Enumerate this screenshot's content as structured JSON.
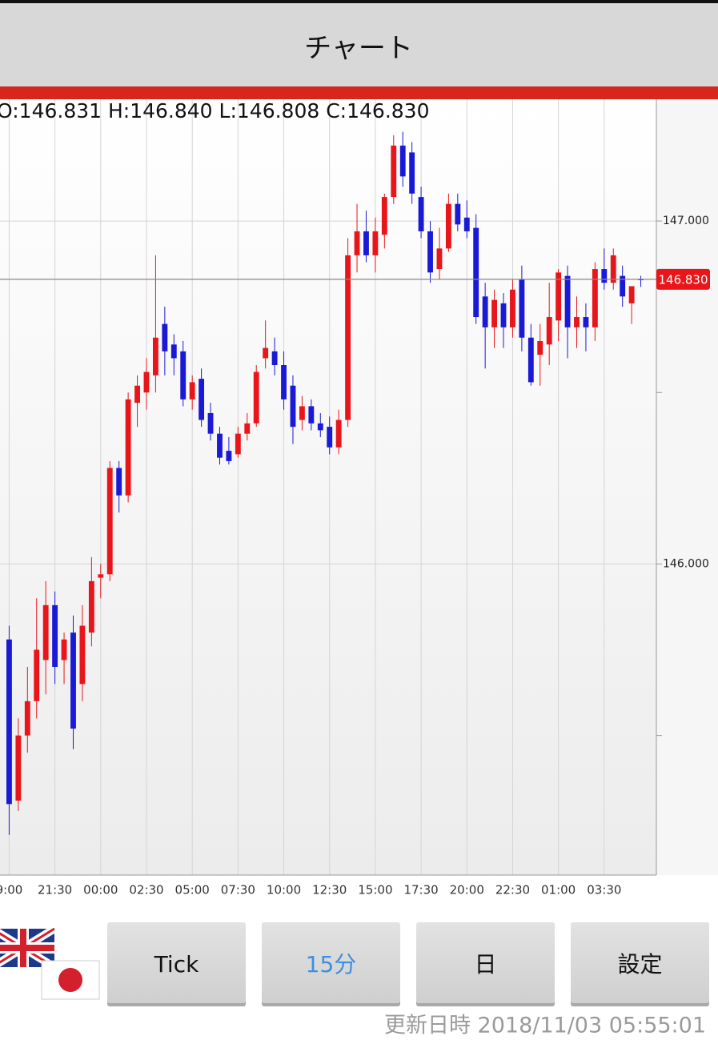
{
  "header": {
    "title": "チャート"
  },
  "chart_data": {
    "type": "candlestick",
    "ohlc_label": "O:146.831 H:146.840 L:146.808 C:146.830",
    "up_color": "#e8161a",
    "down_color": "#1a1ad6",
    "open": [
      145.78,
      145.31,
      145.5,
      145.6,
      145.72,
      145.88,
      145.72,
      145.8,
      145.65,
      145.8,
      145.96,
      145.97,
      146.28,
      146.2,
      146.47,
      146.5,
      146.55,
      146.7,
      146.64,
      146.62,
      146.48,
      146.54,
      146.44,
      146.38,
      146.33,
      146.32,
      146.38,
      146.41,
      146.6,
      146.62,
      146.58,
      146.52,
      146.42,
      146.46,
      146.41,
      146.4,
      146.34,
      146.42,
      146.9,
      146.97,
      146.9,
      146.96,
      147.07,
      147.22,
      147.2,
      147.07,
      146.97,
      146.86,
      146.92,
      147.05,
      147.01,
      146.98,
      146.78,
      146.69,
      146.76,
      146.69,
      146.83,
      146.66,
      146.61,
      146.64,
      146.71,
      146.84,
      146.69,
      146.72,
      146.69,
      146.86,
      146.82,
      146.84,
      146.76,
      146.831
    ],
    "high": [
      145.82,
      145.55,
      145.7,
      145.9,
      145.95,
      145.92,
      145.8,
      145.85,
      145.88,
      146.02,
      146.0,
      146.3,
      146.3,
      146.5,
      146.55,
      146.6,
      146.9,
      146.75,
      146.67,
      146.65,
      146.55,
      146.57,
      146.47,
      146.4,
      146.37,
      146.4,
      146.44,
      146.58,
      146.71,
      146.66,
      146.62,
      146.55,
      146.49,
      146.48,
      146.44,
      146.43,
      146.45,
      146.95,
      147.05,
      147.03,
      147.01,
      147.08,
      147.25,
      147.26,
      147.23,
      147.1,
      147.0,
      146.98,
      147.08,
      147.08,
      147.06,
      147.02,
      146.82,
      146.8,
      146.79,
      146.83,
      146.87,
      146.7,
      146.7,
      146.82,
      146.86,
      146.87,
      146.78,
      146.76,
      146.88,
      146.92,
      146.92,
      146.87,
      146.81,
      146.84
    ],
    "low": [
      145.21,
      145.28,
      145.45,
      145.55,
      145.62,
      145.65,
      145.65,
      145.46,
      145.6,
      145.76,
      145.9,
      145.95,
      146.15,
      146.18,
      146.4,
      146.45,
      146.5,
      146.55,
      146.55,
      146.46,
      146.45,
      146.4,
      146.36,
      146.29,
      146.29,
      146.31,
      146.36,
      146.4,
      146.57,
      146.55,
      146.45,
      146.35,
      146.39,
      146.39,
      146.37,
      146.32,
      146.32,
      146.4,
      146.85,
      146.88,
      146.85,
      146.92,
      147.05,
      147.1,
      147.05,
      146.95,
      146.82,
      146.83,
      146.91,
      146.97,
      146.95,
      146.7,
      146.57,
      146.63,
      146.63,
      146.66,
      146.62,
      146.52,
      146.52,
      146.58,
      146.65,
      146.6,
      146.63,
      146.62,
      146.65,
      146.8,
      146.8,
      146.75,
      146.7,
      146.808
    ],
    "close": [
      145.3,
      145.5,
      145.6,
      145.75,
      145.88,
      145.7,
      145.78,
      145.52,
      145.82,
      145.95,
      145.97,
      146.28,
      146.2,
      146.48,
      146.52,
      146.56,
      146.66,
      146.62,
      146.6,
      146.48,
      146.53,
      146.42,
      146.38,
      146.31,
      146.3,
      146.38,
      146.41,
      146.56,
      146.63,
      146.58,
      146.48,
      146.4,
      146.46,
      146.41,
      146.39,
      146.34,
      146.42,
      146.9,
      146.97,
      146.9,
      146.97,
      147.07,
      147.22,
      147.13,
      147.08,
      146.97,
      146.85,
      146.92,
      147.05,
      146.99,
      146.97,
      146.72,
      146.69,
      146.77,
      146.69,
      146.8,
      146.66,
      146.53,
      146.65,
      146.72,
      146.85,
      146.69,
      146.72,
      146.69,
      146.86,
      146.82,
      146.9,
      146.78,
      146.81,
      146.83
    ],
    "current_price": {
      "value": 146.83,
      "label": "146.830"
    },
    "xlim": [
      -1,
      70.7
    ],
    "xticks": [
      {
        "value": 0,
        "label": "9:00"
      },
      {
        "value": 5,
        "label": "21:30"
      },
      {
        "value": 10,
        "label": "00:00"
      },
      {
        "value": 15,
        "label": "02:30"
      },
      {
        "value": 20,
        "label": "05:00"
      },
      {
        "value": 25,
        "label": "07:30"
      },
      {
        "value": 30,
        "label": "10:00"
      },
      {
        "value": 35,
        "label": "12:30"
      },
      {
        "value": 40,
        "label": "15:00"
      },
      {
        "value": 45,
        "label": "17:30"
      },
      {
        "value": 50,
        "label": "20:00"
      },
      {
        "value": 55,
        "label": "22:30"
      },
      {
        "value": 60,
        "label": "01:00"
      },
      {
        "value": 65,
        "label": "03:30"
      }
    ],
    "ylim": [
      145.093,
      147.355
    ],
    "yticks": [
      {
        "value": 147,
        "label": "147.000"
      },
      {
        "value": 146,
        "label": "146.000"
      }
    ],
    "minor_yticks": [
      146.5,
      145.5
    ],
    "grid": true
  },
  "buttons": [
    "Tick",
    "15分",
    "日",
    "設定"
  ],
  "selected_button": 1,
  "footer": {
    "updated": "更新日時 2018/11/03 05:55:01"
  }
}
